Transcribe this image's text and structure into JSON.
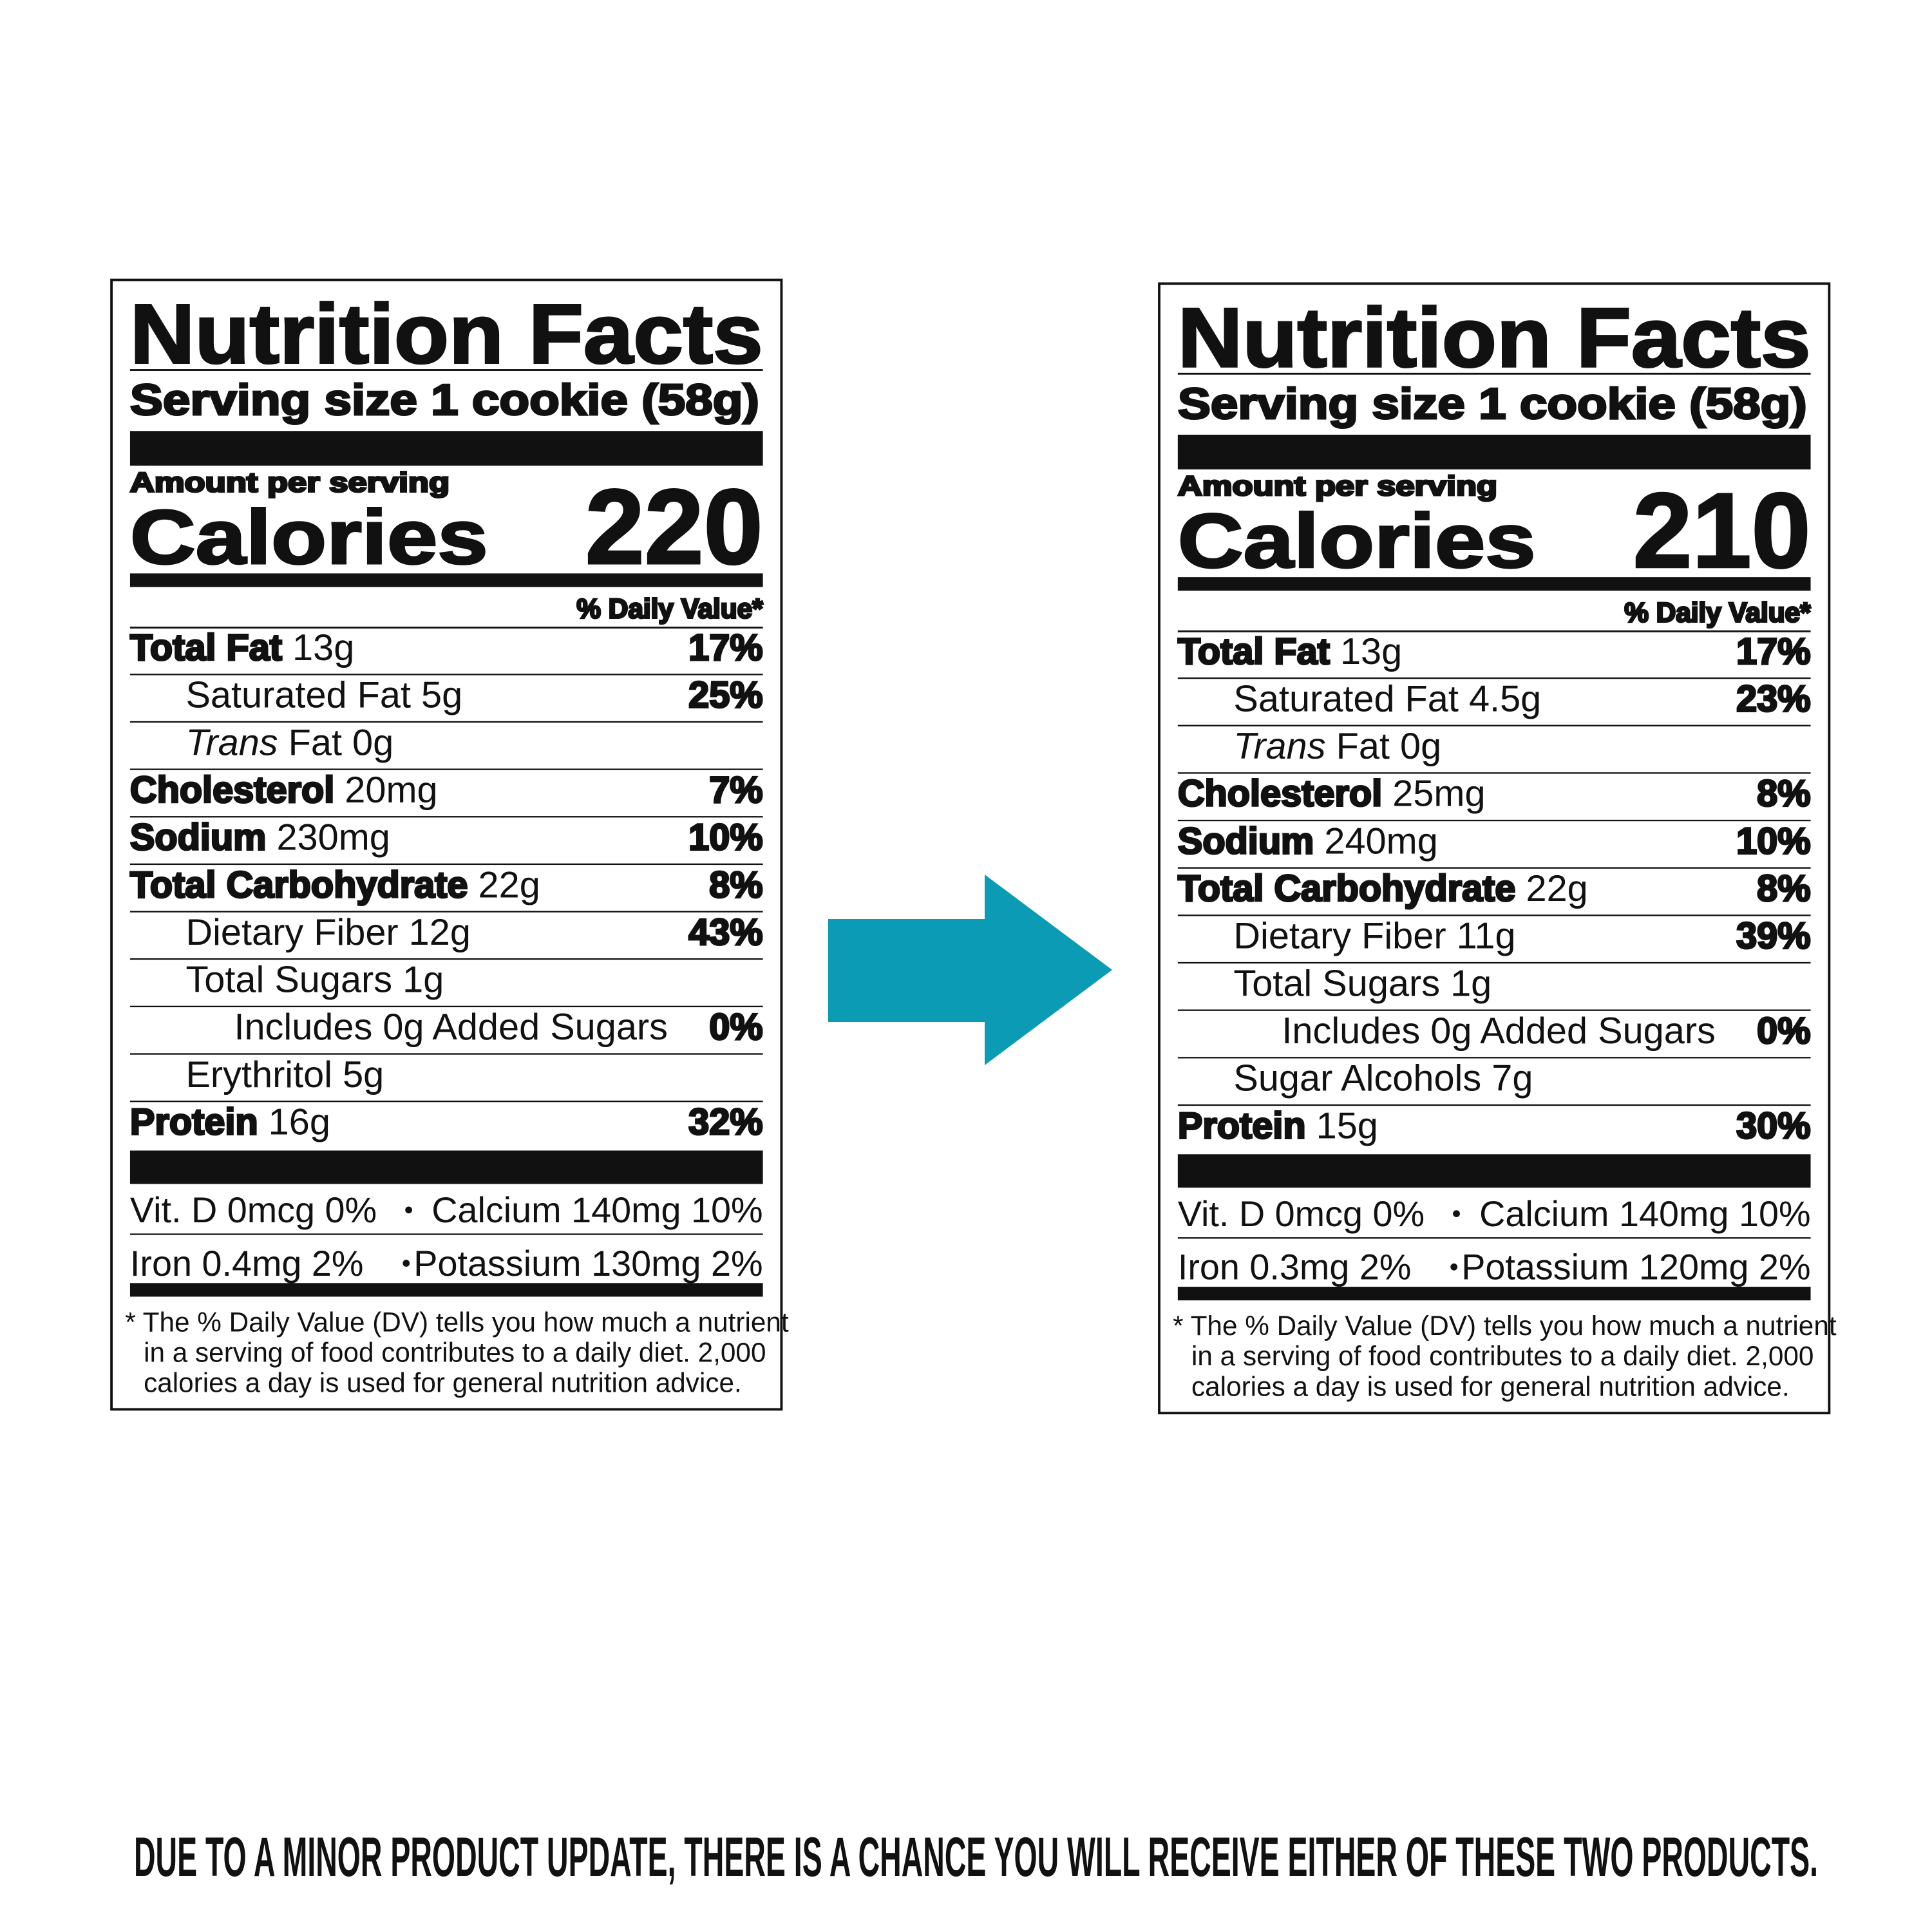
{
  "labels": [
    {
      "title": "Nutrition Facts",
      "serving": "Serving size 1 cookie (58g)",
      "amount_per_serving": "Amount per serving",
      "calories_label": "Calories",
      "calories": "220",
      "dv_header": "% Daily Value*",
      "rows": [
        {
          "name": "Total Fat",
          "amount": "13g",
          "dv": "17%"
        },
        {
          "name": "Saturated Fat",
          "amount": "5g",
          "dv": "25%"
        },
        {
          "name_italic": "Trans",
          "name": "Fat",
          "amount": "0g"
        },
        {
          "name": "Cholesterol",
          "amount": "20mg",
          "dv": "7%"
        },
        {
          "name": "Sodium",
          "amount": "230mg",
          "dv": "10%"
        },
        {
          "name": "Total Carbohydrate",
          "amount": "22g",
          "dv": "8%"
        },
        {
          "name": "Dietary Fiber",
          "amount": "12g",
          "dv": "43%"
        },
        {
          "name": "Total Sugars",
          "amount": "1g"
        },
        {
          "name": "Includes 0g Added Sugars",
          "dv": "0%"
        },
        {
          "name": "Erythritol",
          "amount": "5g"
        },
        {
          "name": "Protein",
          "amount": "16g",
          "dv": "32%"
        }
      ],
      "vitamins": [
        [
          "Vit. D 0mcg 0%",
          "Calcium 140mg 10%"
        ],
        [
          "Iron 0.4mg 2%",
          "Potassium 130mg 2%"
        ]
      ],
      "footnote": [
        "* The % Daily Value (DV) tells you how much a nutrient",
        "in a serving of food contributes to a daily diet. 2,000",
        "calories a day is used for general nutrition advice."
      ]
    },
    {
      "title": "Nutrition Facts",
      "serving": "Serving size 1 cookie (58g)",
      "amount_per_serving": "Amount per serving",
      "calories_label": "Calories",
      "calories": "210",
      "dv_header": "% Daily Value*",
      "rows": [
        {
          "name": "Total Fat",
          "amount": "13g",
          "dv": "17%"
        },
        {
          "name": "Saturated Fat",
          "amount": "4.5g",
          "dv": "23%"
        },
        {
          "name_italic": "Trans",
          "name": "Fat",
          "amount": "0g"
        },
        {
          "name": "Cholesterol",
          "amount": "25mg",
          "dv": "8%"
        },
        {
          "name": "Sodium",
          "amount": "240mg",
          "dv": "10%"
        },
        {
          "name": "Total Carbohydrate",
          "amount": "22g",
          "dv": "8%"
        },
        {
          "name": "Dietary Fiber",
          "amount": "11g",
          "dv": "39%"
        },
        {
          "name": "Total Sugars",
          "amount": "1g"
        },
        {
          "name": "Includes 0g Added Sugars",
          "dv": "0%"
        },
        {
          "name": "Sugar Alcohols",
          "amount": "7g"
        },
        {
          "name": "Protein",
          "amount": "15g",
          "dv": "30%"
        }
      ],
      "vitamins": [
        [
          "Vit. D 0mcg 0%",
          "Calcium 140mg 10%"
        ],
        [
          "Iron 0.3mg 2%",
          "Potassium 120mg 2%"
        ]
      ],
      "footnote": [
        "* The % Daily Value (DV) tells you how much a nutrient",
        "in a serving of food contributes to a daily diet. 2,000",
        "calories a day is used for general nutrition advice."
      ]
    }
  ],
  "notice": "DUE TO A MINOR PRODUCT UPDATE, THERE IS A CHANCE YOU WILL RECEIVE EITHER OF THESE TWO PRODUCTS."
}
